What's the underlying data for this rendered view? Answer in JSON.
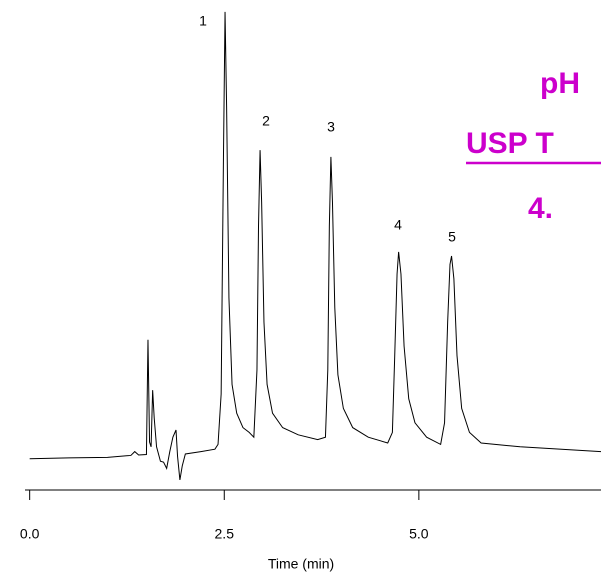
{
  "chart_data": {
    "type": "line",
    "x_label": "Time (min)",
    "annotations": [
      "pH",
      "USP T",
      "4."
    ],
    "peak_labels": [
      "1",
      "2",
      "3",
      "4",
      "5"
    ],
    "color": "#000000",
    "annotation_color": "#cc00cc",
    "xlim": [
      -0.06,
      7.34
    ],
    "ylim": [
      0,
      100
    ],
    "xticks": [
      {
        "value": 0,
        "label": "0.0"
      },
      {
        "value": 2.5,
        "label": "2.5"
      },
      {
        "value": 5,
        "label": "5.0"
      }
    ],
    "x": [
      0.0,
      0.5,
      1.0,
      1.3,
      1.35,
      1.4,
      1.5,
      1.52,
      1.54,
      1.56,
      1.58,
      1.6,
      1.63,
      1.68,
      1.72,
      1.76,
      1.8,
      1.84,
      1.88,
      1.9,
      1.93,
      1.96,
      2.0,
      2.2,
      2.38,
      2.42,
      2.46,
      2.49,
      2.51,
      2.53,
      2.56,
      2.6,
      2.66,
      2.74,
      2.82,
      2.88,
      2.92,
      2.94,
      2.96,
      2.98,
      3.01,
      3.05,
      3.12,
      3.25,
      3.45,
      3.7,
      3.8,
      3.83,
      3.85,
      3.87,
      3.89,
      3.92,
      3.96,
      4.03,
      4.15,
      4.35,
      4.6,
      4.66,
      4.69,
      4.72,
      4.74,
      4.77,
      4.81,
      4.87,
      4.95,
      5.1,
      5.28,
      5.33,
      5.37,
      5.4,
      5.42,
      5.45,
      5.49,
      5.55,
      5.65,
      5.8,
      6.3,
      7.34
    ],
    "values": [
      6.5,
      6.7,
      6.8,
      7.2,
      8.0,
      7.3,
      7.4,
      31.3,
      10,
      9,
      20.8,
      15,
      9,
      6.0,
      5.8,
      4.5,
      8,
      11,
      12.5,
      7,
      2.1,
      5,
      7.5,
      8.0,
      8.5,
      9.5,
      20,
      70,
      99.6,
      80,
      40,
      22,
      16,
      13,
      12,
      11,
      25,
      55,
      70.8,
      60,
      35,
      22,
      16,
      13,
      11.5,
      10.5,
      11,
      25,
      55,
      69.4,
      60,
      38,
      24,
      17,
      13,
      11,
      9.8,
      12,
      28,
      45,
      49.6,
      45,
      30,
      19,
      14,
      11,
      9.5,
      14,
      35,
      47,
      48.75,
      44,
      28,
      17,
      12,
      9.8,
      9,
      8
    ]
  }
}
